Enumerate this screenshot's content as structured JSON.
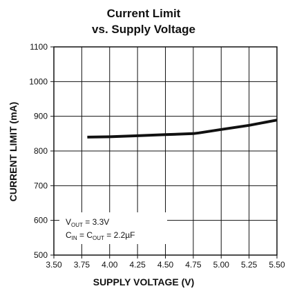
{
  "chart_data": {
    "type": "line",
    "title_line1": "Current Limit",
    "title_line2": "vs. Supply Voltage",
    "xlabel": "SUPPLY VOLTAGE (V)",
    "ylabel": "CURRENT LIMIT (mA)",
    "xlim": [
      3.5,
      5.5
    ],
    "ylim": [
      500,
      1100
    ],
    "xticks": [
      3.5,
      3.75,
      4.0,
      4.25,
      4.5,
      4.75,
      5.0,
      5.25,
      5.5
    ],
    "xtick_labels": [
      "3.50",
      "3.75",
      "4.00",
      "4.25",
      "4.50",
      "4.75",
      "5.00",
      "5.25",
      "5.50"
    ],
    "yticks": [
      500,
      600,
      700,
      800,
      900,
      1000,
      1100
    ],
    "ytick_labels": [
      "500",
      "600",
      "700",
      "800",
      "900",
      "1000",
      "1100"
    ],
    "grid": true,
    "series": [
      {
        "x": [
          3.8,
          4.0,
          4.25,
          4.5,
          4.75,
          4.8,
          5.0,
          5.25,
          5.5
        ],
        "y": [
          840,
          841,
          844,
          847,
          850,
          852,
          862,
          874,
          889
        ]
      }
    ],
    "annotation": {
      "vout_main": "V",
      "vout_sub": "OUT",
      "vout_rest": " = 3.3V",
      "cin_main": "C",
      "cin_sub": "IN",
      "cout_eq": " = C",
      "cout_sub": "OUT",
      "cout_rest": " = 2.2µF"
    },
    "colors": {
      "line": "#111111",
      "grid": "#111111",
      "background": "#ffffff"
    }
  }
}
